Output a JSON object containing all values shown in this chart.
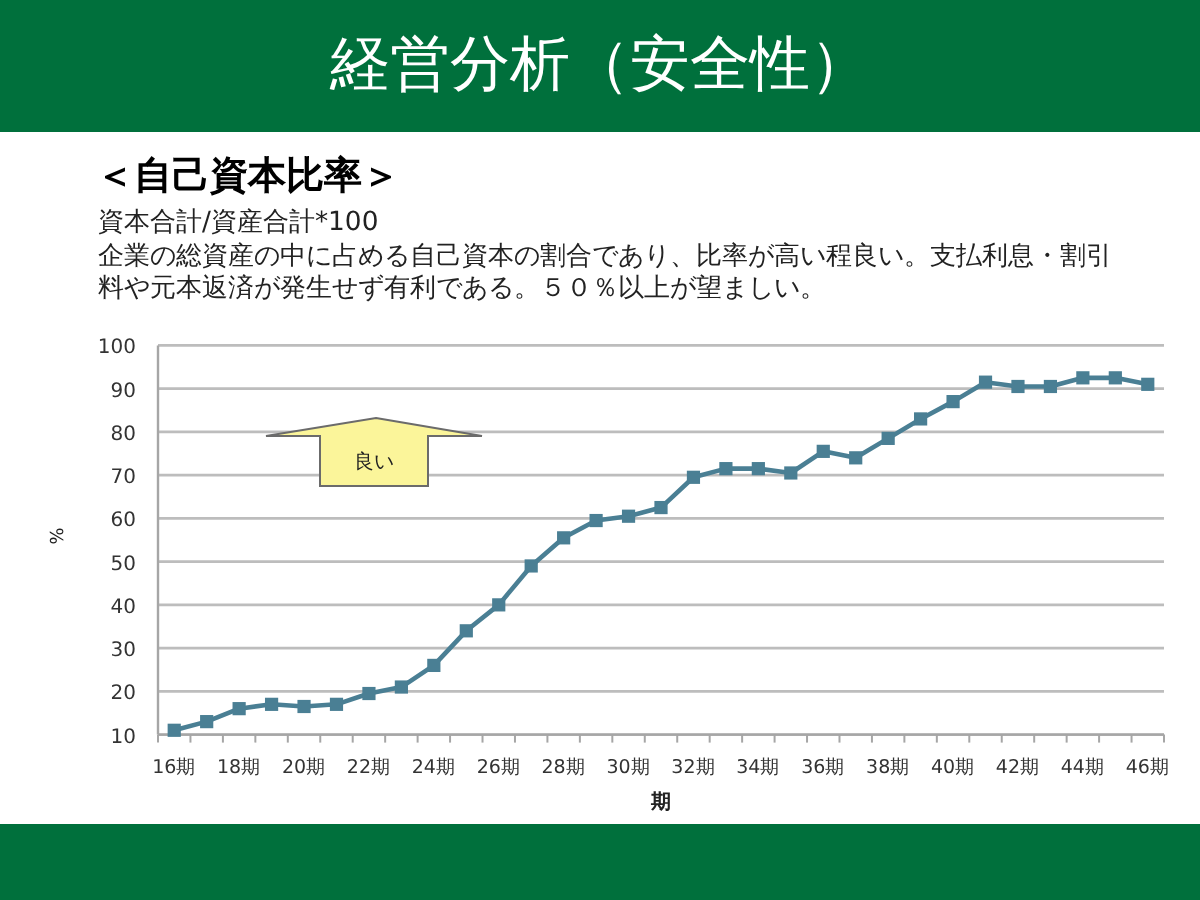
{
  "chart_data": {
    "type": "line",
    "title": "経営分析（安全性）",
    "subtitle": "＜自己資本比率＞",
    "annotations": [
      "資本合計/資産合計*100",
      "企業の総資産の中に占める自己資本の割合であり、比率が高い程良い。支払利息・割引料や元本返済が発生せず有利である。５０％以上が望ましい。",
      "良い"
    ],
    "xlabel": "期",
    "ylabel": "%",
    "categories": [
      "16期",
      null,
      "18期",
      null,
      "20期",
      null,
      "22期",
      null,
      "24期",
      null,
      "26期",
      null,
      "28期",
      null,
      "30期",
      null,
      "32期",
      null,
      "34期",
      null,
      "36期",
      null,
      "38期",
      null,
      "40期",
      null,
      "42期",
      null,
      "44期",
      null,
      "46期"
    ],
    "values": [
      11,
      13,
      16,
      17,
      16.5,
      17,
      19.5,
      21,
      26,
      34,
      40,
      49,
      55.5,
      59.5,
      60.5,
      62.5,
      69.5,
      71.5,
      71.5,
      70.5,
      75.5,
      74,
      78.5,
      83,
      87,
      91.5,
      90.5,
      90.5,
      92.5,
      92.5,
      91
    ],
    "color": "#4a7f94",
    "ylim": [
      10,
      100
    ],
    "yticks": [
      10,
      20,
      30,
      40,
      50,
      60,
      70,
      80,
      90,
      100
    ],
    "grid": "y",
    "marker": "square",
    "line_style": "solid"
  }
}
